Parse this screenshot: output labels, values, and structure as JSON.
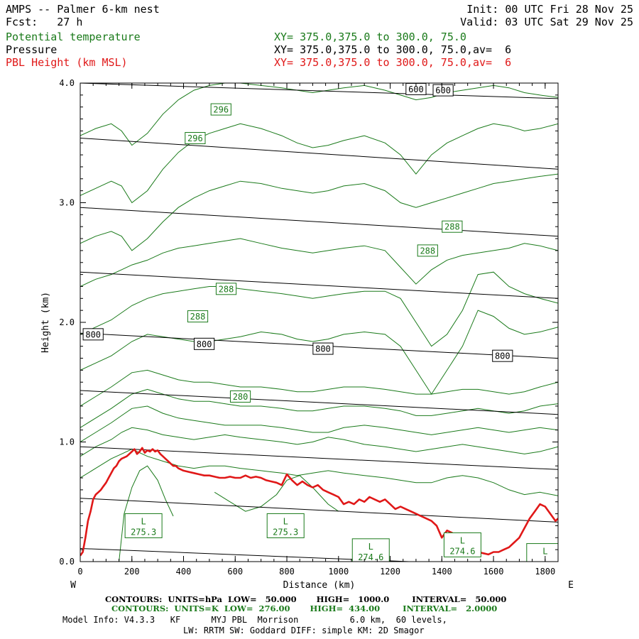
{
  "header": {
    "title": "AMPS -- Palmer 6-km nest",
    "fcst": "Fcst:   27 h",
    "init": "Init: 00 UTC Fri 28 Nov 25",
    "valid": "Valid: 03 UTC Sat 29 Nov 25",
    "legend": [
      {
        "label": "Potential temperature",
        "xy": "XY= 375.0,375.0 to 300.0, 75.0",
        "color": "#1a7a1a"
      },
      {
        "label": "Pressure",
        "xy": "XY= 375.0,375.0 to 300.0, 75.0,av=  6",
        "color": "#000000"
      },
      {
        "label": "PBL Height (km MSL)",
        "xy": "XY= 375.0,375.0 to 300.0, 75.0,av=  6",
        "color": "#e01818"
      }
    ]
  },
  "footer": {
    "pressure_contours": "CONTOURS:  UNITS=hPa  LOW=   50.000       HIGH=   1000.0        INTERVAL=   50.000",
    "theta_contours": "CONTOURS:  UNITS=K  LOW=  276.00       HIGH=  434.00        INTERVAL=   2.0000",
    "model_info": "Model Info: V4.3.3   KF      MYJ PBL  Morrison          6.0 km,  60 levels,",
    "model_info2": "LW: RRTM SW: Goddard DIFF: simple KM: 2D Smagor"
  },
  "chart_data": {
    "type": "line",
    "xlabel": "Distance (km)",
    "ylabel": "Height (km)",
    "xlim": [
      0,
      1850
    ],
    "ylim": [
      0.0,
      4.0
    ],
    "x_ticks": [
      "0",
      "200",
      "400",
      "600",
      "800",
      "1000",
      "1200",
      "1400",
      "1600",
      "1800"
    ],
    "y_ticks": [
      "0.0",
      "1.0",
      "2.0",
      "3.0",
      "4.0"
    ],
    "x_tick_values": [
      0,
      200,
      400,
      600,
      800,
      1000,
      1200,
      1400,
      1600,
      1800
    ],
    "y_tick_values": [
      0,
      1,
      2,
      3,
      4
    ],
    "left_end": "W",
    "right_end": "E",
    "pressure_lines": [
      {
        "x": [
          0,
          1850
        ],
        "y": [
          0.11,
          -0.05
        ]
      },
      {
        "x": [
          0,
          1850
        ],
        "y": [
          0.53,
          0.33
        ]
      },
      {
        "x": [
          0,
          1850
        ],
        "y": [
          0.96,
          0.77
        ]
      },
      {
        "x": [
          0,
          1850
        ],
        "y": [
          1.43,
          1.23
        ]
      },
      {
        "x": [
          0,
          1850
        ],
        "y": [
          1.91,
          1.7
        ]
      },
      {
        "x": [
          0,
          1850
        ],
        "y": [
          2.42,
          2.2
        ]
      },
      {
        "x": [
          0,
          1850
        ],
        "y": [
          2.96,
          2.72
        ]
      },
      {
        "x": [
          0,
          1850
        ],
        "y": [
          3.54,
          3.28
        ]
      },
      {
        "x": [
          0,
          1850
        ],
        "y": [
          4.0,
          3.87
        ]
      }
    ],
    "pressure_labels": [
      {
        "text": "800",
        "x": 50,
        "y": 1.9
      },
      {
        "text": "800",
        "x": 480,
        "y": 1.82
      },
      {
        "text": "800",
        "x": 940,
        "y": 1.78
      },
      {
        "text": "800",
        "x": 1635,
        "y": 1.72
      },
      {
        "text": "600",
        "x": 1300,
        "y": 3.95
      },
      {
        "text": "600",
        "x": 1405,
        "y": 3.94
      }
    ],
    "theta_lines": [
      {
        "x": [
          0,
          60,
          120,
          160,
          200,
          260,
          320,
          380,
          440,
          500,
          560,
          620,
          700,
          780,
          840,
          900,
          960,
          1020,
          1100,
          1180,
          1240,
          1300,
          1360,
          1420,
          1480,
          1540,
          1600,
          1660,
          1720,
          1780,
          1850
        ],
        "y": [
          0.7,
          0.78,
          0.86,
          0.9,
          0.94,
          0.88,
          0.84,
          0.8,
          0.78,
          0.8,
          0.8,
          0.78,
          0.76,
          0.74,
          0.72,
          0.74,
          0.76,
          0.74,
          0.72,
          0.7,
          0.68,
          0.66,
          0.66,
          0.7,
          0.72,
          0.7,
          0.66,
          0.6,
          0.56,
          0.58,
          0.55
        ]
      },
      {
        "x": [
          0,
          60,
          120,
          160,
          200,
          260,
          320,
          380,
          440,
          500,
          560,
          620,
          700,
          780,
          840,
          900,
          960,
          1020,
          1100,
          1180,
          1240,
          1300,
          1360,
          1420,
          1480,
          1540,
          1600,
          1660,
          1720,
          1780,
          1850
        ],
        "y": [
          0.88,
          0.96,
          1.02,
          1.08,
          1.12,
          1.1,
          1.06,
          1.04,
          1.02,
          1.04,
          1.06,
          1.04,
          1.02,
          1.0,
          0.98,
          1.0,
          1.04,
          1.02,
          0.98,
          0.96,
          0.94,
          0.92,
          0.94,
          0.96,
          0.98,
          0.96,
          0.94,
          0.92,
          0.9,
          0.92,
          0.96
        ]
      },
      {
        "x": [
          0,
          60,
          120,
          160,
          200,
          260,
          320,
          380,
          440,
          500,
          560,
          620,
          700,
          780,
          840,
          900,
          960,
          1020,
          1100,
          1180,
          1240,
          1300,
          1360,
          1420,
          1480,
          1540,
          1600,
          1660,
          1720,
          1780,
          1850
        ],
        "y": [
          1.0,
          1.08,
          1.16,
          1.22,
          1.28,
          1.3,
          1.24,
          1.2,
          1.18,
          1.16,
          1.14,
          1.14,
          1.14,
          1.12,
          1.1,
          1.08,
          1.08,
          1.12,
          1.14,
          1.12,
          1.1,
          1.08,
          1.06,
          1.08,
          1.1,
          1.12,
          1.1,
          1.08,
          1.1,
          1.12,
          1.1
        ]
      },
      {
        "x": [
          0,
          60,
          120,
          160,
          200,
          260,
          320,
          380,
          440,
          500,
          560,
          620,
          700,
          780,
          840,
          900,
          960,
          1020,
          1100,
          1180,
          1240,
          1300,
          1360,
          1420,
          1480,
          1540,
          1600,
          1660,
          1720,
          1780,
          1850
        ],
        "y": [
          1.12,
          1.2,
          1.28,
          1.34,
          1.4,
          1.44,
          1.4,
          1.36,
          1.34,
          1.34,
          1.32,
          1.3,
          1.3,
          1.28,
          1.26,
          1.26,
          1.28,
          1.3,
          1.3,
          1.28,
          1.26,
          1.22,
          1.22,
          1.24,
          1.26,
          1.28,
          1.26,
          1.24,
          1.26,
          1.3,
          1.32
        ]
      },
      {
        "x": [
          0,
          60,
          120,
          160,
          200,
          260,
          320,
          380,
          440,
          500,
          560,
          620,
          700,
          780,
          840,
          900,
          960,
          1020,
          1100,
          1180,
          1240,
          1300,
          1360,
          1420,
          1480,
          1540,
          1600,
          1660,
          1720,
          1780,
          1850
        ],
        "y": [
          1.3,
          1.38,
          1.46,
          1.52,
          1.58,
          1.6,
          1.56,
          1.52,
          1.5,
          1.5,
          1.48,
          1.46,
          1.46,
          1.44,
          1.42,
          1.42,
          1.44,
          1.46,
          1.46,
          1.44,
          1.42,
          1.4,
          1.4,
          1.42,
          1.44,
          1.44,
          1.42,
          1.4,
          1.42,
          1.46,
          1.5
        ]
      },
      {
        "x": [
          0,
          60,
          120,
          160,
          200,
          260,
          320,
          380,
          440,
          500,
          560,
          620,
          700,
          780,
          840,
          900,
          960,
          1020,
          1100,
          1180,
          1240,
          1300,
          1360,
          1420,
          1480,
          1540,
          1600,
          1660,
          1720,
          1780,
          1850
        ],
        "y": [
          1.6,
          1.66,
          1.72,
          1.78,
          1.84,
          1.9,
          1.88,
          1.86,
          1.84,
          1.84,
          1.86,
          1.88,
          1.92,
          1.9,
          1.86,
          1.84,
          1.86,
          1.9,
          1.92,
          1.9,
          1.8,
          1.6,
          1.4,
          1.6,
          1.8,
          2.1,
          2.05,
          1.95,
          1.9,
          1.92,
          1.96
        ]
      },
      {
        "x": [
          0,
          60,
          120,
          160,
          200,
          260,
          320,
          380,
          440,
          500,
          560,
          620,
          700,
          780,
          840,
          900,
          960,
          1020,
          1100,
          1180,
          1240,
          1300,
          1360,
          1420,
          1480,
          1540,
          1600,
          1660,
          1720,
          1780,
          1850
        ],
        "y": [
          1.9,
          1.96,
          2.02,
          2.08,
          2.14,
          2.2,
          2.24,
          2.26,
          2.28,
          2.3,
          2.3,
          2.28,
          2.26,
          2.24,
          2.22,
          2.2,
          2.22,
          2.24,
          2.26,
          2.26,
          2.2,
          2.0,
          1.8,
          1.9,
          2.1,
          2.4,
          2.42,
          2.3,
          2.24,
          2.2,
          2.16
        ]
      },
      {
        "x": [
          0,
          60,
          120,
          160,
          200,
          260,
          320,
          380,
          440,
          500,
          560,
          620,
          700,
          780,
          840,
          900,
          960,
          1020,
          1100,
          1180,
          1240,
          1300,
          1360,
          1420,
          1480,
          1540,
          1600,
          1660,
          1720,
          1780,
          1850
        ],
        "y": [
          2.3,
          2.36,
          2.4,
          2.44,
          2.48,
          2.52,
          2.58,
          2.62,
          2.64,
          2.66,
          2.68,
          2.7,
          2.66,
          2.62,
          2.6,
          2.58,
          2.6,
          2.62,
          2.64,
          2.6,
          2.46,
          2.32,
          2.44,
          2.52,
          2.56,
          2.58,
          2.6,
          2.62,
          2.66,
          2.64,
          2.6
        ]
      },
      {
        "x": [
          0,
          60,
          120,
          160,
          200,
          260,
          320,
          380,
          440,
          500,
          560,
          620,
          700,
          780,
          840,
          900,
          960,
          1020,
          1100,
          1180,
          1240,
          1300,
          1360,
          1420,
          1480,
          1540,
          1600,
          1660,
          1720,
          1780,
          1850
        ],
        "y": [
          2.66,
          2.72,
          2.76,
          2.72,
          2.6,
          2.7,
          2.84,
          2.96,
          3.04,
          3.1,
          3.14,
          3.18,
          3.16,
          3.12,
          3.1,
          3.08,
          3.1,
          3.14,
          3.16,
          3.1,
          3.0,
          2.96,
          3.0,
          3.04,
          3.08,
          3.12,
          3.16,
          3.18,
          3.2,
          3.22,
          3.24
        ]
      },
      {
        "x": [
          0,
          60,
          120,
          160,
          200,
          260,
          320,
          380,
          440,
          500,
          560,
          620,
          700,
          780,
          840,
          900,
          960,
          1020,
          1100,
          1180,
          1240,
          1300,
          1360,
          1420,
          1480,
          1540,
          1600,
          1660,
          1720,
          1780,
          1850
        ],
        "y": [
          3.06,
          3.12,
          3.18,
          3.14,
          3.0,
          3.1,
          3.28,
          3.42,
          3.52,
          3.58,
          3.62,
          3.66,
          3.62,
          3.56,
          3.5,
          3.46,
          3.48,
          3.52,
          3.56,
          3.5,
          3.4,
          3.24,
          3.4,
          3.5,
          3.56,
          3.62,
          3.66,
          3.64,
          3.6,
          3.62,
          3.66
        ]
      },
      {
        "x": [
          0,
          60,
          120,
          160,
          200,
          260,
          320,
          380,
          440,
          500,
          560,
          620,
          700,
          780,
          840,
          900,
          960,
          1020,
          1100,
          1180,
          1240,
          1300,
          1360,
          1420,
          1480,
          1540,
          1600,
          1660,
          1720,
          1780,
          1850
        ],
        "y": [
          3.56,
          3.62,
          3.66,
          3.6,
          3.48,
          3.58,
          3.74,
          3.86,
          3.94,
          3.98,
          4.0,
          4.0,
          3.98,
          3.96,
          3.94,
          3.92,
          3.94,
          3.96,
          3.98,
          3.94,
          3.9,
          3.86,
          3.88,
          3.92,
          3.94,
          3.96,
          3.98,
          3.96,
          3.92,
          3.9,
          3.88
        ]
      },
      {
        "x": [
          150,
          170,
          200,
          230,
          260,
          300,
          330,
          360
        ],
        "y": [
          0.0,
          0.4,
          0.62,
          0.76,
          0.8,
          0.68,
          0.52,
          0.38
        ]
      },
      {
        "x": [
          520,
          580,
          640,
          700,
          760,
          800,
          850,
          900,
          960,
          1000
        ],
        "y": [
          0.58,
          0.5,
          0.42,
          0.46,
          0.56,
          0.68,
          0.72,
          0.62,
          0.48,
          0.42
        ]
      }
    ],
    "theta_labels": [
      {
        "text": "296",
        "x": 545,
        "y": 3.78
      },
      {
        "text": "296",
        "x": 445,
        "y": 3.54
      },
      {
        "text": "288",
        "x": 1440,
        "y": 2.8
      },
      {
        "text": "288",
        "x": 1345,
        "y": 2.6
      },
      {
        "text": "288",
        "x": 565,
        "y": 2.28
      },
      {
        "text": "288",
        "x": 455,
        "y": 2.05
      },
      {
        "text": "280",
        "x": 620,
        "y": 1.38
      }
    ],
    "low_labels": [
      {
        "text": "L",
        "value": "275.3",
        "x": 245,
        "y": 0.3
      },
      {
        "text": "L",
        "value": "275.3",
        "x": 795,
        "y": 0.3
      },
      {
        "text": "L",
        "value": "274.6",
        "x": 1125,
        "y": 0.09
      },
      {
        "text": "L",
        "value": "274.6",
        "x": 1480,
        "y": 0.14
      },
      {
        "text": "L",
        "value": "",
        "x": 1800,
        "y": 0.05
      }
    ],
    "pbl_height": {
      "x": [
        0,
        10,
        20,
        30,
        40,
        50,
        60,
        70,
        80,
        90,
        100,
        110,
        120,
        130,
        140,
        150,
        160,
        170,
        180,
        190,
        200,
        210,
        220,
        230,
        240,
        250,
        260,
        270,
        280,
        290,
        300,
        310,
        320,
        330,
        340,
        350,
        360,
        370,
        380,
        390,
        400,
        420,
        440,
        460,
        480,
        500,
        520,
        540,
        560,
        580,
        600,
        620,
        640,
        660,
        680,
        700,
        720,
        740,
        760,
        780,
        800,
        820,
        840,
        860,
        880,
        900,
        920,
        940,
        960,
        980,
        1000,
        1020,
        1040,
        1060,
        1080,
        1100,
        1120,
        1140,
        1160,
        1180,
        1200,
        1220,
        1240,
        1260,
        1280,
        1300,
        1320,
        1340,
        1360,
        1380,
        1400,
        1420,
        1440,
        1460,
        1480,
        1500,
        1520,
        1540,
        1560,
        1580,
        1600,
        1620,
        1640,
        1660,
        1680,
        1700,
        1720,
        1740,
        1760,
        1780,
        1800,
        1820,
        1840,
        1850
      ],
      "y": [
        0.05,
        0.08,
        0.2,
        0.34,
        0.42,
        0.52,
        0.56,
        0.58,
        0.6,
        0.63,
        0.66,
        0.7,
        0.74,
        0.78,
        0.8,
        0.84,
        0.86,
        0.87,
        0.88,
        0.9,
        0.92,
        0.94,
        0.9,
        0.92,
        0.95,
        0.91,
        0.93,
        0.92,
        0.94,
        0.92,
        0.93,
        0.9,
        0.88,
        0.86,
        0.84,
        0.82,
        0.8,
        0.8,
        0.78,
        0.77,
        0.76,
        0.75,
        0.74,
        0.73,
        0.72,
        0.72,
        0.71,
        0.7,
        0.7,
        0.71,
        0.7,
        0.7,
        0.72,
        0.7,
        0.71,
        0.7,
        0.68,
        0.67,
        0.66,
        0.64,
        0.73,
        0.68,
        0.64,
        0.67,
        0.64,
        0.62,
        0.64,
        0.6,
        0.58,
        0.56,
        0.54,
        0.48,
        0.5,
        0.48,
        0.52,
        0.5,
        0.54,
        0.52,
        0.5,
        0.52,
        0.48,
        0.44,
        0.46,
        0.44,
        0.42,
        0.4,
        0.38,
        0.36,
        0.34,
        0.3,
        0.2,
        0.26,
        0.24,
        0.12,
        0.2,
        0.14,
        0.1,
        0.08,
        0.07,
        0.06,
        0.08,
        0.08,
        0.1,
        0.12,
        0.16,
        0.2,
        0.28,
        0.36,
        0.42,
        0.48,
        0.46,
        0.4,
        0.34,
        0.36
      ]
    }
  }
}
